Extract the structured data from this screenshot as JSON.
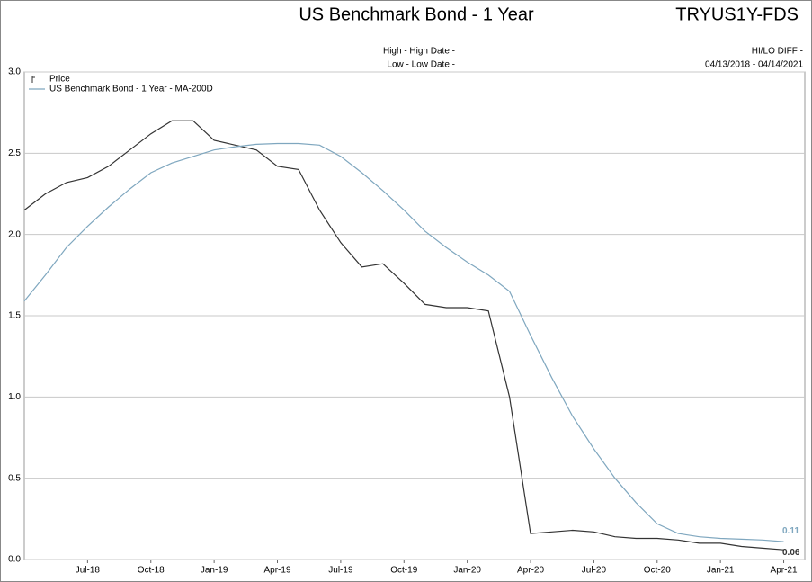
{
  "chart_data": {
    "type": "line",
    "title": "US Benchmark Bond - 1 Year",
    "ticker": "TRYUS1Y-FDS",
    "high_label": "High - High Date -",
    "low_label": "Low - Low Date -",
    "diff_label": "HI/LO DIFF -",
    "date_range": "04/13/2018 - 04/14/2021",
    "x": [
      "2018-04",
      "2018-05",
      "2018-06",
      "2018-07",
      "2018-08",
      "2018-09",
      "2018-10",
      "2018-11",
      "2018-12",
      "2019-01",
      "2019-02",
      "2019-03",
      "2019-04",
      "2019-05",
      "2019-06",
      "2019-07",
      "2019-08",
      "2019-09",
      "2019-10",
      "2019-11",
      "2019-12",
      "2020-01",
      "2020-02",
      "2020-03",
      "2020-04",
      "2020-05",
      "2020-06",
      "2020-07",
      "2020-08",
      "2020-09",
      "2020-10",
      "2020-11",
      "2020-12",
      "2021-01",
      "2021-02",
      "2021-03",
      "2021-04"
    ],
    "series": [
      {
        "name": "Price",
        "color": "#333333",
        "values": [
          2.15,
          2.25,
          2.32,
          2.35,
          2.42,
          2.52,
          2.62,
          2.7,
          2.7,
          2.58,
          2.55,
          2.52,
          2.42,
          2.4,
          2.15,
          1.95,
          1.8,
          1.82,
          1.7,
          1.57,
          1.55,
          1.55,
          1.53,
          1.0,
          0.16,
          0.17,
          0.18,
          0.17,
          0.14,
          0.13,
          0.13,
          0.12,
          0.1,
          0.1,
          0.08,
          0.07,
          0.06
        ]
      },
      {
        "name": "US Benchmark Bond - 1 Year - MA-200D",
        "color": "#7fa7bf",
        "values": [
          1.59,
          1.75,
          1.92,
          2.05,
          2.17,
          2.28,
          2.38,
          2.44,
          2.48,
          2.52,
          2.54,
          2.555,
          2.56,
          2.56,
          2.55,
          2.48,
          2.38,
          2.27,
          2.15,
          2.02,
          1.92,
          1.83,
          1.75,
          1.65,
          1.38,
          1.12,
          0.88,
          0.68,
          0.5,
          0.35,
          0.22,
          0.16,
          0.14,
          0.13,
          0.125,
          0.12,
          0.11
        ]
      }
    ],
    "xlim": [
      "2018-04",
      "2021-05"
    ],
    "xticks": [
      {
        "value": "2018-07",
        "label": "Jul-18"
      },
      {
        "value": "2018-10",
        "label": "Oct-18"
      },
      {
        "value": "2019-01",
        "label": "Jan-19"
      },
      {
        "value": "2019-04",
        "label": "Apr-19"
      },
      {
        "value": "2019-07",
        "label": "Jul-19"
      },
      {
        "value": "2019-10",
        "label": "Oct-19"
      },
      {
        "value": "2020-01",
        "label": "Jan-20"
      },
      {
        "value": "2020-04",
        "label": "Apr-20"
      },
      {
        "value": "2020-07",
        "label": "Jul-20"
      },
      {
        "value": "2020-10",
        "label": "Oct-20"
      },
      {
        "value": "2021-01",
        "label": "Jan-21"
      },
      {
        "value": "2021-04",
        "label": "Apr-21"
      }
    ],
    "ylim": [
      0,
      3
    ],
    "yticks": [
      {
        "value": 0,
        "label": "0.0"
      },
      0.5,
      {
        "value": 1,
        "label": "1.0"
      },
      1.5,
      {
        "value": 2,
        "label": "2.0"
      },
      2.5,
      {
        "value": 3,
        "label": "3.0"
      }
    ],
    "grid": true
  }
}
